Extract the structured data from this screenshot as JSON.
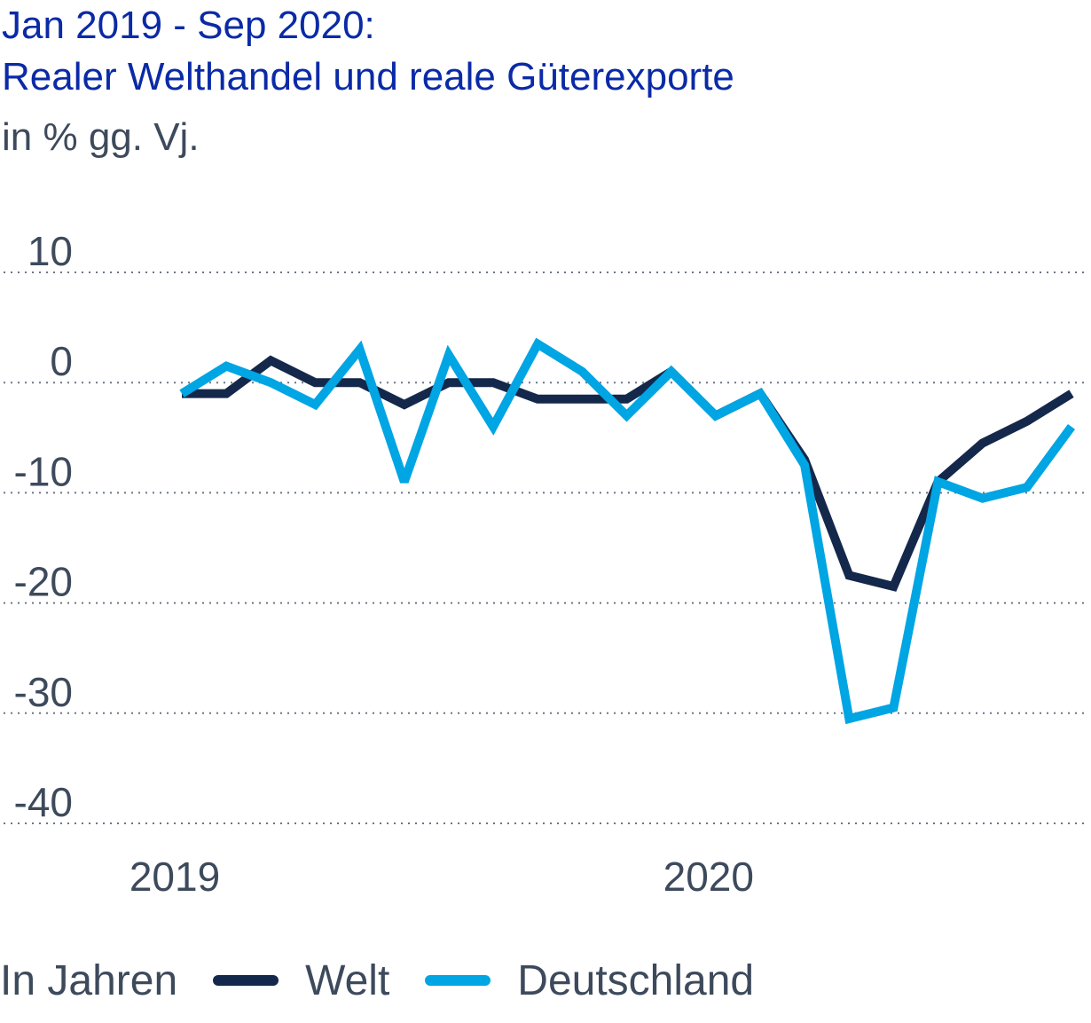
{
  "header": {
    "title_line1": "Jan 2019 - Sep 2020:",
    "title_line2": "Realer Welthandel und reale Güterexporte",
    "subtitle": "in % gg. Vj."
  },
  "legend": {
    "prefix": "In Jahren",
    "items": [
      {
        "label": "Welt",
        "color": "#14284b"
      },
      {
        "label": "Deutschland",
        "color": "#00a5e3"
      }
    ]
  },
  "chart_data": {
    "type": "line",
    "ylim": [
      -40,
      10
    ],
    "yticks": [
      10,
      0,
      -10,
      -20,
      -30,
      -40
    ],
    "ytick_labels": [
      "10",
      "0",
      "-10",
      "-20",
      "-30",
      "-40"
    ],
    "xlim": [
      0,
      20
    ],
    "xticks": [
      {
        "index": 0,
        "label": "2019"
      },
      {
        "index": 12,
        "label": "2020"
      }
    ],
    "x": [
      "Jan 2019",
      "Feb 2019",
      "Mar 2019",
      "Apr 2019",
      "May 2019",
      "Jun 2019",
      "Jul 2019",
      "Aug 2019",
      "Sep 2019",
      "Oct 2019",
      "Nov 2019",
      "Dec 2019",
      "Jan 2020",
      "Feb 2020",
      "Mar 2020",
      "Apr 2020",
      "May 2020",
      "Jun 2020",
      "Jul 2020",
      "Aug 2020",
      "Sep 2020"
    ],
    "grid": true,
    "series": [
      {
        "name": "Welt",
        "color": "#14284b",
        "values": [
          -1.0,
          -1.0,
          2.0,
          0.0,
          0.0,
          -2.0,
          0.0,
          0.0,
          -1.5,
          -1.5,
          -1.5,
          1.0,
          -3.0,
          -1.0,
          -7.0,
          -17.5,
          -18.5,
          -9.0,
          -5.5,
          -3.5,
          -1.0
        ]
      },
      {
        "name": "Deutschland",
        "color": "#00a5e3",
        "values": [
          -1.0,
          1.5,
          0.0,
          -2.0,
          3.0,
          -9.0,
          2.5,
          -4.0,
          3.5,
          1.0,
          -3.0,
          1.0,
          -3.0,
          -1.0,
          -7.5,
          -30.5,
          -29.5,
          -9.0,
          -10.5,
          -9.5,
          -4.0
        ]
      }
    ]
  }
}
